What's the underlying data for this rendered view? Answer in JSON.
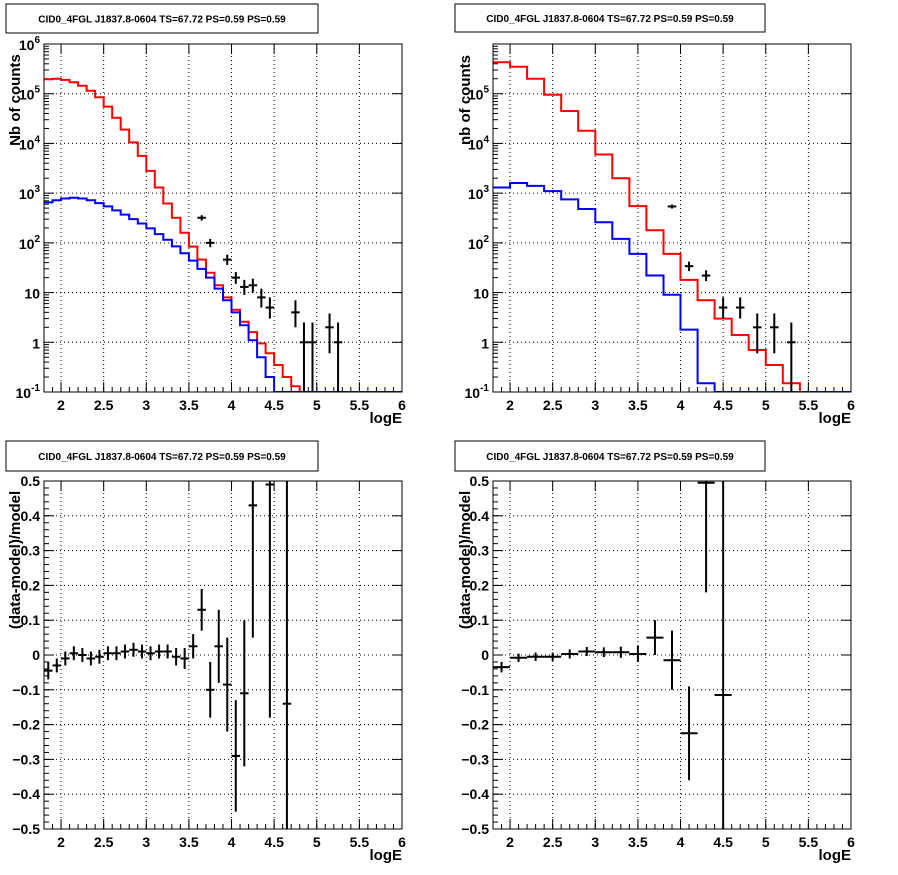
{
  "colors": {
    "model": "#ff0000",
    "background": "#0000ff",
    "data": "#000000"
  },
  "chart_data": [
    {
      "type": "line",
      "title": "CID0_4FGL J1837.8-0604 TS=67.72 PS=0.59 PS=0.59",
      "xlabel": "logE",
      "ylabel": "Nb of counts",
      "xlim": [
        1.8,
        6
      ],
      "ylim": [
        0.1,
        1000000
      ],
      "yscale": "log",
      "grid": true,
      "xticks": [
        "2",
        "2.5",
        "3",
        "3.5",
        "4",
        "4.5",
        "5",
        "5.5",
        "6"
      ],
      "yticks": [
        "10^{-1}",
        "1",
        "10",
        "10^{2}",
        "10^{3}",
        "10^{4}",
        "10^{5}",
        "10^{6}"
      ],
      "series": [
        {
          "role": "model",
          "style": "step",
          "color": "#ff0000",
          "bin_width": 0.1,
          "x_start": 1.8,
          "values": [
            195000,
            200000,
            190000,
            170000,
            145000,
            115000,
            85000,
            55000,
            33000,
            19000,
            10500,
            5600,
            2800,
            1300,
            620,
            320,
            160,
            84,
            46,
            25,
            14,
            8,
            4.5,
            2.6,
            1.6,
            0.95,
            0.6,
            0.35,
            0.2,
            0.13,
            0.1,
            0.1,
            0.1,
            0.1,
            0.1,
            0.1,
            0.1,
            0.1,
            0.1,
            0.1,
            0.1,
            0.1
          ]
        },
        {
          "role": "background",
          "style": "step",
          "color": "#0000ff",
          "bin_width": 0.1,
          "x_start": 1.8,
          "values": [
            650,
            720,
            780,
            810,
            780,
            720,
            630,
            540,
            450,
            370,
            300,
            245,
            195,
            150,
            115,
            85,
            62,
            44,
            30,
            20,
            12,
            7,
            4,
            2.2,
            1.1,
            0.5,
            0.2,
            0.1,
            0.1,
            0.1,
            0.1,
            0.1,
            0.1,
            0.1,
            0.1,
            0.1,
            0.1,
            0.1,
            0.1,
            0.1,
            0.1,
            0.1
          ]
        },
        {
          "role": "data",
          "style": "errorbar",
          "color": "#000000",
          "points": [
            {
              "x": 3.65,
              "y": 320,
              "lo": 280,
              "hi": 360
            },
            {
              "x": 3.75,
              "y": 100,
              "lo": 82,
              "hi": 120
            },
            {
              "x": 3.95,
              "y": 46,
              "lo": 36,
              "hi": 58
            },
            {
              "x": 4.05,
              "y": 20,
              "lo": 15,
              "hi": 26
            },
            {
              "x": 4.15,
              "y": 13,
              "lo": 9,
              "hi": 18
            },
            {
              "x": 4.25,
              "y": 14,
              "lo": 10,
              "hi": 19
            },
            {
              "x": 4.35,
              "y": 8,
              "lo": 5,
              "hi": 12
            },
            {
              "x": 4.45,
              "y": 5,
              "lo": 3,
              "hi": 8
            },
            {
              "x": 4.75,
              "y": 4,
              "lo": 2,
              "hi": 7
            },
            {
              "x": 4.85,
              "y": 1,
              "lo": 0.1,
              "hi": 2.5
            },
            {
              "x": 4.95,
              "y": 1,
              "lo": 0.1,
              "hi": 2.5
            },
            {
              "x": 5.15,
              "y": 2,
              "lo": 0.6,
              "hi": 3.8
            },
            {
              "x": 5.25,
              "y": 1,
              "lo": 0.1,
              "hi": 2.5
            }
          ]
        }
      ]
    },
    {
      "type": "line",
      "title": "CID0_4FGL J1837.8-0604 TS=67.72 PS=0.59 PS=0.59",
      "xlabel": "logE",
      "ylabel": "nb of counts",
      "xlim": [
        1.8,
        6
      ],
      "ylim": [
        0.1,
        1000000
      ],
      "yscale": "log",
      "grid": true,
      "xticks": [
        "2",
        "2.5",
        "3",
        "3.5",
        "4",
        "4.5",
        "5",
        "5.5",
        "6"
      ],
      "yticks": [
        "10^{-1}",
        "1",
        "10",
        "10^{2}",
        "10^{3}",
        "10^{4}",
        "10^{5}"
      ],
      "series": [
        {
          "role": "model",
          "style": "step",
          "color": "#ff0000",
          "bin_width": 0.2,
          "x_start": 1.8,
          "values": [
            430000,
            350000,
            200000,
            95000,
            45000,
            18000,
            6000,
            2000,
            550,
            180,
            60,
            18,
            7,
            3,
            1.4,
            0.7,
            0.35,
            0.15,
            0.1,
            0.1,
            0.1
          ]
        },
        {
          "role": "background",
          "style": "step",
          "color": "#0000ff",
          "bin_width": 0.2,
          "x_start": 1.8,
          "values": [
            1300,
            1600,
            1400,
            1100,
            750,
            480,
            260,
            120,
            60,
            22,
            9,
            1.8,
            0.15,
            0.1,
            0.1,
            0.1,
            0.1,
            0.1,
            0.1,
            0.1,
            0.1
          ]
        },
        {
          "role": "data",
          "style": "errorbar",
          "color": "#000000",
          "points": [
            {
              "x": 3.9,
              "y": 540,
              "lo": 490,
              "hi": 590
            },
            {
              "x": 4.1,
              "y": 34,
              "lo": 27,
              "hi": 42
            },
            {
              "x": 4.3,
              "y": 22,
              "lo": 17,
              "hi": 28
            },
            {
              "x": 4.5,
              "y": 5,
              "lo": 3,
              "hi": 8
            },
            {
              "x": 4.7,
              "y": 5,
              "lo": 3,
              "hi": 8
            },
            {
              "x": 4.9,
              "y": 2,
              "lo": 0.6,
              "hi": 3.8
            },
            {
              "x": 5.1,
              "y": 2,
              "lo": 0.6,
              "hi": 3.8
            },
            {
              "x": 5.3,
              "y": 1,
              "lo": 0.1,
              "hi": 2.5
            }
          ]
        }
      ]
    },
    {
      "type": "scatter",
      "title": "CID0_4FGL J1837.8-0604 TS=67.72 PS=0.59 PS=0.59",
      "xlabel": "logE",
      "ylabel": "(data-model)/model",
      "xlim": [
        1.8,
        6
      ],
      "ylim": [
        -0.5,
        0.5
      ],
      "yscale": "linear",
      "grid": true,
      "xticks": [
        "2",
        "2.5",
        "3",
        "3.5",
        "4",
        "4.5",
        "5",
        "5.5",
        "6"
      ],
      "yticks": [
        "-0.5",
        "-0.4",
        "-0.3",
        "-0.2",
        "-0.1",
        "0",
        "0.1",
        "0.2",
        "0.3",
        "0.4",
        "0.5"
      ],
      "series": [
        {
          "role": "residual",
          "style": "errorbar",
          "color": "#000000",
          "bin_width": 0.1,
          "points": [
            {
              "x": 1.85,
              "y": -0.045,
              "lo": -0.07,
              "hi": -0.02
            },
            {
              "x": 1.95,
              "y": -0.03,
              "lo": -0.05,
              "hi": -0.01
            },
            {
              "x": 2.05,
              "y": -0.01,
              "lo": -0.03,
              "hi": 0.01
            },
            {
              "x": 2.15,
              "y": 0.005,
              "lo": -0.015,
              "hi": 0.025
            },
            {
              "x": 2.25,
              "y": 0.0,
              "lo": -0.02,
              "hi": 0.02
            },
            {
              "x": 2.35,
              "y": -0.01,
              "lo": -0.03,
              "hi": 0.01
            },
            {
              "x": 2.45,
              "y": -0.005,
              "lo": -0.025,
              "hi": 0.015
            },
            {
              "x": 2.55,
              "y": 0.005,
              "lo": -0.015,
              "hi": 0.025
            },
            {
              "x": 2.65,
              "y": 0.005,
              "lo": -0.015,
              "hi": 0.025
            },
            {
              "x": 2.75,
              "y": 0.01,
              "lo": -0.01,
              "hi": 0.03
            },
            {
              "x": 2.85,
              "y": 0.015,
              "lo": -0.005,
              "hi": 0.035
            },
            {
              "x": 2.95,
              "y": 0.01,
              "lo": -0.01,
              "hi": 0.03
            },
            {
              "x": 3.05,
              "y": 0.005,
              "lo": -0.015,
              "hi": 0.025
            },
            {
              "x": 3.15,
              "y": 0.01,
              "lo": -0.01,
              "hi": 0.03
            },
            {
              "x": 3.25,
              "y": 0.01,
              "lo": -0.01,
              "hi": 0.03
            },
            {
              "x": 3.35,
              "y": -0.005,
              "lo": -0.03,
              "hi": 0.02
            },
            {
              "x": 3.45,
              "y": -0.01,
              "lo": -0.04,
              "hi": 0.02
            },
            {
              "x": 3.55,
              "y": 0.025,
              "lo": -0.01,
              "hi": 0.06
            },
            {
              "x": 3.65,
              "y": 0.13,
              "lo": 0.07,
              "hi": 0.19
            },
            {
              "x": 3.75,
              "y": -0.1,
              "lo": -0.18,
              "hi": -0.02
            },
            {
              "x": 3.85,
              "y": 0.025,
              "lo": -0.08,
              "hi": 0.13
            },
            {
              "x": 3.95,
              "y": -0.085,
              "lo": -0.22,
              "hi": 0.05
            },
            {
              "x": 4.05,
              "y": -0.29,
              "lo": -0.45,
              "hi": -0.13
            },
            {
              "x": 4.15,
              "y": -0.11,
              "lo": -0.32,
              "hi": 0.1
            },
            {
              "x": 4.25,
              "y": 0.43,
              "lo": 0.05,
              "hi": 0.5
            },
            {
              "x": 4.45,
              "y": 0.49,
              "lo": -0.18,
              "hi": 0.5
            },
            {
              "x": 4.65,
              "y": -0.14,
              "lo": -0.5,
              "hi": 0.5
            }
          ]
        }
      ]
    },
    {
      "type": "scatter",
      "title": "CID0_4FGL J1837.8-0604 TS=67.72 PS=0.59 PS=0.59",
      "xlabel": "logE",
      "ylabel": "(data-model)/model",
      "xlim": [
        1.8,
        6
      ],
      "ylim": [
        -0.5,
        0.5
      ],
      "yscale": "linear",
      "grid": true,
      "xticks": [
        "2",
        "2.5",
        "3",
        "3.5",
        "4",
        "4.5",
        "5",
        "5.5",
        "6"
      ],
      "yticks": [
        "-0.5",
        "-0.4",
        "-0.3",
        "-0.2",
        "-0.1",
        "0",
        "0.1",
        "0.2",
        "0.3",
        "0.4",
        "0.5"
      ],
      "series": [
        {
          "role": "residual",
          "style": "errorbar",
          "color": "#000000",
          "bin_width": 0.2,
          "points": [
            {
              "x": 1.9,
              "y": -0.035,
              "lo": -0.05,
              "hi": -0.02
            },
            {
              "x": 2.1,
              "y": -0.008,
              "lo": -0.02,
              "hi": 0.004
            },
            {
              "x": 2.3,
              "y": -0.005,
              "lo": -0.017,
              "hi": 0.007
            },
            {
              "x": 2.5,
              "y": -0.005,
              "lo": -0.017,
              "hi": 0.007
            },
            {
              "x": 2.7,
              "y": 0.003,
              "lo": -0.01,
              "hi": 0.016
            },
            {
              "x": 2.9,
              "y": 0.01,
              "lo": -0.003,
              "hi": 0.023
            },
            {
              "x": 3.1,
              "y": 0.008,
              "lo": -0.006,
              "hi": 0.022
            },
            {
              "x": 3.3,
              "y": 0.008,
              "lo": -0.008,
              "hi": 0.024
            },
            {
              "x": 3.5,
              "y": 0.003,
              "lo": -0.02,
              "hi": 0.026
            },
            {
              "x": 3.7,
              "y": 0.05,
              "lo": 0.0,
              "hi": 0.1
            },
            {
              "x": 3.9,
              "y": -0.015,
              "lo": -0.1,
              "hi": 0.07
            },
            {
              "x": 4.1,
              "y": -0.225,
              "lo": -0.36,
              "hi": -0.09
            },
            {
              "x": 4.3,
              "y": 0.495,
              "lo": 0.18,
              "hi": 0.5
            },
            {
              "x": 4.5,
              "y": -0.115,
              "lo": -0.5,
              "hi": 0.5
            }
          ]
        }
      ]
    }
  ]
}
